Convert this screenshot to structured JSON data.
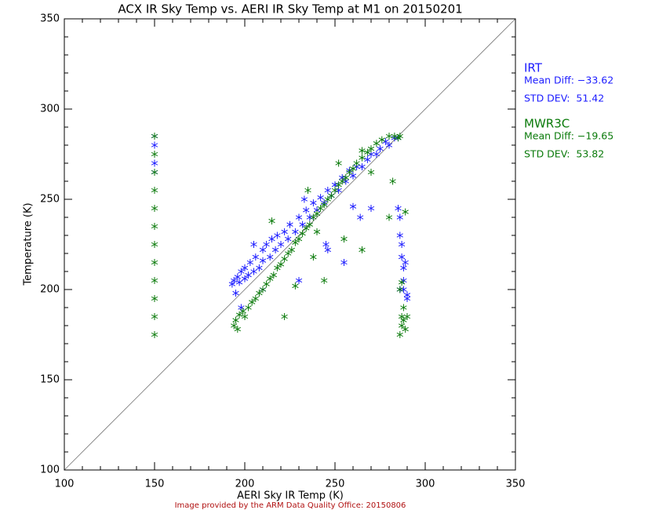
{
  "chart_data": {
    "type": "scatter",
    "title": "ACX IR Sky Temp vs. AERI IR Sky Temp at M1 on 20150201",
    "x_label": "AERI Sky IR Temp (K)",
    "y_label": "Temperature (K)",
    "footer": "Image provided by the ARM Data Quality Office: 20150806",
    "xlim": [
      100,
      350
    ],
    "ylim": [
      100,
      350
    ],
    "xticks": [
      100,
      150,
      200,
      250,
      300,
      350
    ],
    "yticks": [
      100,
      150,
      200,
      250,
      300,
      350
    ],
    "minor_ticks": [
      110,
      120,
      130,
      140,
      160,
      170,
      180,
      190,
      210,
      220,
      230,
      240,
      260,
      270,
      280,
      290,
      310,
      320,
      330,
      340
    ],
    "series": [
      {
        "name": "IRT",
        "color": "#1c1cff",
        "stats": [
          "Mean Diff: −33.62",
          "STD DEV:  51.42"
        ],
        "x": [
          150,
          150,
          150,
          150,
          193,
          194,
          195,
          196,
          197,
          198,
          200,
          200,
          202,
          203,
          205,
          206,
          208,
          210,
          210,
          212,
          214,
          215,
          217,
          218,
          220,
          222,
          224,
          225,
          228,
          230,
          232,
          234,
          236,
          238,
          240,
          242,
          244,
          246,
          248,
          250,
          252,
          254,
          256,
          258,
          260,
          262,
          265,
          268,
          270,
          273,
          275,
          278,
          280,
          283,
          285,
          198,
          205,
          210,
          233,
          245,
          255,
          260,
          264,
          270,
          230,
          246,
          285,
          286,
          286,
          287,
          287,
          288,
          288,
          288,
          289,
          290,
          290,
          286
        ],
        "values": [
          270,
          280,
          285,
          265,
          203,
          205,
          198,
          207,
          204,
          210,
          206,
          212,
          208,
          215,
          210,
          218,
          212,
          216,
          222,
          225,
          218,
          228,
          222,
          230,
          225,
          232,
          228,
          236,
          232,
          240,
          236,
          244,
          240,
          248,
          244,
          251,
          248,
          255,
          252,
          258,
          255,
          262,
          260,
          266,
          263,
          268,
          268,
          272,
          275,
          275,
          278,
          282,
          280,
          284,
          284,
          190,
          225,
          200,
          250,
          225,
          215,
          246,
          240,
          245,
          205,
          222,
          245,
          240,
          230,
          225,
          218,
          212,
          205,
          200,
          215,
          197,
          195,
          200
        ]
      },
      {
        "name": "MWR3C",
        "color": "#0a7a0a",
        "stats": [
          "Mean Diff: −19.65",
          "STD DEV:  53.82"
        ],
        "x": [
          150,
          150,
          150,
          150,
          150,
          150,
          150,
          150,
          150,
          150,
          150,
          150,
          194,
          195,
          196,
          197,
          199,
          200,
          202,
          204,
          206,
          208,
          210,
          212,
          214,
          216,
          218,
          220,
          222,
          224,
          226,
          228,
          230,
          232,
          234,
          236,
          238,
          240,
          242,
          244,
          246,
          248,
          250,
          252,
          254,
          256,
          258,
          260,
          262,
          265,
          268,
          270,
          273,
          276,
          280,
          283,
          285,
          286,
          215,
          222,
          228,
          235,
          244,
          252,
          265,
          265,
          270,
          280,
          282,
          240,
          255,
          238,
          286,
          287,
          287,
          288,
          286,
          287,
          288,
          289,
          290,
          289
        ],
        "values": [
          175,
          185,
          195,
          205,
          215,
          225,
          235,
          245,
          255,
          265,
          275,
          285,
          180,
          183,
          178,
          186,
          188,
          185,
          190,
          193,
          195,
          198,
          200,
          203,
          206,
          208,
          212,
          214,
          217,
          220,
          222,
          226,
          228,
          231,
          234,
          236,
          240,
          242,
          245,
          247,
          250,
          252,
          255,
          258,
          260,
          262,
          265,
          267,
          270,
          273,
          276,
          278,
          281,
          283,
          285,
          285,
          284,
          285,
          238,
          185,
          202,
          255,
          205,
          270,
          277,
          222,
          265,
          240,
          260,
          232,
          228,
          218,
          175,
          180,
          185,
          190,
          200,
          204,
          183,
          178,
          185,
          243
        ]
      }
    ]
  }
}
